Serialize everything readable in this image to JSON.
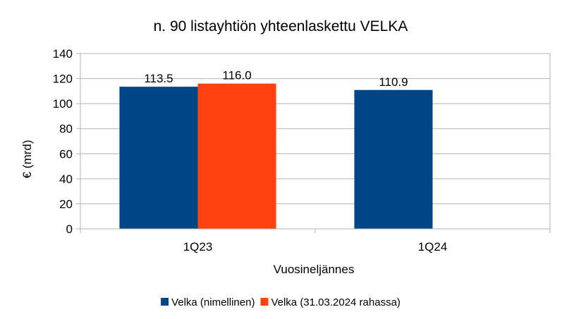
{
  "chart_data": {
    "type": "bar",
    "title": "n. 90 listayhtiön yhteenlaskettu VELKA",
    "xlabel": "Vuosineljännes",
    "ylabel": "€ (mrd)",
    "categories": [
      "1Q23",
      "1Q24"
    ],
    "series": [
      {
        "name": "Velka (nimellinen)",
        "color": "#004586",
        "values": [
          113.5,
          110.9
        ],
        "labels": [
          "113.5",
          "110.9"
        ]
      },
      {
        "name": "Velka (31.03.2024 rahassa)",
        "color": "#FF420E",
        "values": [
          116.0,
          null
        ],
        "labels": [
          "116.0",
          ""
        ]
      }
    ],
    "ylim": [
      0,
      140
    ],
    "yticks": [
      "0",
      "20",
      "40",
      "60",
      "80",
      "100",
      "120",
      "140"
    ],
    "grid": true,
    "legend_position": "bottom"
  }
}
